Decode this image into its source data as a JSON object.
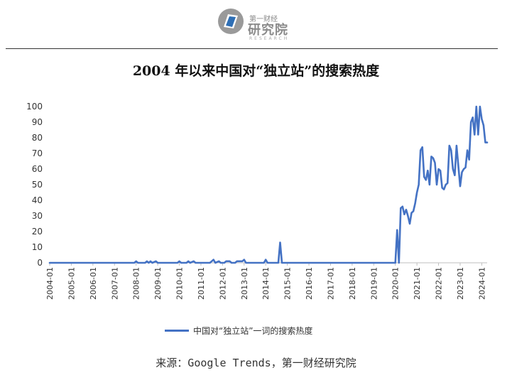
{
  "logo": {
    "small_text": "第一财经",
    "big_text": "研究院",
    "sub_text": "RESEARCH"
  },
  "chart_data": {
    "type": "line",
    "title": "2004 年以来中国对“独立站”的搜索热度",
    "xlabel": "",
    "ylabel": "",
    "ylim": [
      0,
      100
    ],
    "yticks": [
      0,
      10,
      20,
      30,
      40,
      50,
      60,
      70,
      80,
      90,
      100
    ],
    "xticks": [
      "2004-01",
      "2005-01",
      "2006-01",
      "2007-01",
      "2008-01",
      "2009-01",
      "2010-01",
      "2011-01",
      "2012-01",
      "2013-01",
      "2014-01",
      "2015-01",
      "2016-01",
      "2017-01",
      "2018-01",
      "2019-01",
      "2020-01",
      "2021-01",
      "2022-01",
      "2023-01",
      "2024-01"
    ],
    "grid": false,
    "legend_position": "bottom",
    "series": [
      {
        "name": "中国对“独立站”一词的搜索热度",
        "color": "#4472c4",
        "points": [
          [
            "2004-01",
            0
          ],
          [
            "2007-12",
            0
          ],
          [
            "2008-01",
            1
          ],
          [
            "2008-02",
            0
          ],
          [
            "2008-06",
            0
          ],
          [
            "2008-07",
            1
          ],
          [
            "2008-08",
            0
          ],
          [
            "2008-09",
            1
          ],
          [
            "2008-10",
            0
          ],
          [
            "2008-12",
            1
          ],
          [
            "2009-01",
            0
          ],
          [
            "2009-12",
            0
          ],
          [
            "2010-01",
            1
          ],
          [
            "2010-02",
            0
          ],
          [
            "2010-05",
            0
          ],
          [
            "2010-06",
            1
          ],
          [
            "2010-07",
            0
          ],
          [
            "2010-09",
            1
          ],
          [
            "2010-10",
            0
          ],
          [
            "2011-06",
            0
          ],
          [
            "2011-07",
            1
          ],
          [
            "2011-08",
            2
          ],
          [
            "2011-09",
            0
          ],
          [
            "2011-11",
            1
          ],
          [
            "2011-12",
            0
          ],
          [
            "2012-02",
            0
          ],
          [
            "2012-03",
            1
          ],
          [
            "2012-05",
            1
          ],
          [
            "2012-06",
            0
          ],
          [
            "2012-08",
            0
          ],
          [
            "2012-09",
            1
          ],
          [
            "2012-12",
            1
          ],
          [
            "2013-01",
            2
          ],
          [
            "2013-02",
            0
          ],
          [
            "2013-12",
            0
          ],
          [
            "2014-01",
            2
          ],
          [
            "2014-02",
            0
          ],
          [
            "2014-08",
            0
          ],
          [
            "2014-09",
            13
          ],
          [
            "2014-10",
            0
          ],
          [
            "2019-12",
            0
          ],
          [
            "2020-01",
            0
          ],
          [
            "2020-02",
            21
          ],
          [
            "2020-03",
            0
          ],
          [
            "2020-04",
            35
          ],
          [
            "2020-05",
            36
          ],
          [
            "2020-06",
            31
          ],
          [
            "2020-07",
            34
          ],
          [
            "2020-08",
            30
          ],
          [
            "2020-09",
            25
          ],
          [
            "2020-10",
            32
          ],
          [
            "2020-11",
            33
          ],
          [
            "2020-12",
            38
          ],
          [
            "2021-01",
            45
          ],
          [
            "2021-02",
            50
          ],
          [
            "2021-03",
            72
          ],
          [
            "2021-04",
            74
          ],
          [
            "2021-05",
            55
          ],
          [
            "2021-06",
            53
          ],
          [
            "2021-07",
            59
          ],
          [
            "2021-08",
            50
          ],
          [
            "2021-09",
            68
          ],
          [
            "2021-10",
            67
          ],
          [
            "2021-11",
            64
          ],
          [
            "2021-12",
            50
          ],
          [
            "2022-01",
            60
          ],
          [
            "2022-02",
            59
          ],
          [
            "2022-03",
            48
          ],
          [
            "2022-04",
            47
          ],
          [
            "2022-05",
            50
          ],
          [
            "2022-06",
            51
          ],
          [
            "2022-07",
            75
          ],
          [
            "2022-08",
            72
          ],
          [
            "2022-09",
            60
          ],
          [
            "2022-10",
            56
          ],
          [
            "2022-11",
            75
          ],
          [
            "2022-12",
            62
          ],
          [
            "2023-01",
            49
          ],
          [
            "2023-02",
            58
          ],
          [
            "2023-03",
            60
          ],
          [
            "2023-04",
            61
          ],
          [
            "2023-05",
            72
          ],
          [
            "2023-06",
            66
          ],
          [
            "2023-07",
            90
          ],
          [
            "2023-08",
            93
          ],
          [
            "2023-09",
            82
          ],
          [
            "2023-10",
            100
          ],
          [
            "2023-11",
            82
          ],
          [
            "2023-12",
            100
          ],
          [
            "2024-01",
            92
          ],
          [
            "2024-02",
            88
          ],
          [
            "2024-03",
            77
          ],
          [
            "2024-04",
            77
          ]
        ]
      }
    ]
  },
  "source": "来源：Google Trends，第一财经研究院"
}
